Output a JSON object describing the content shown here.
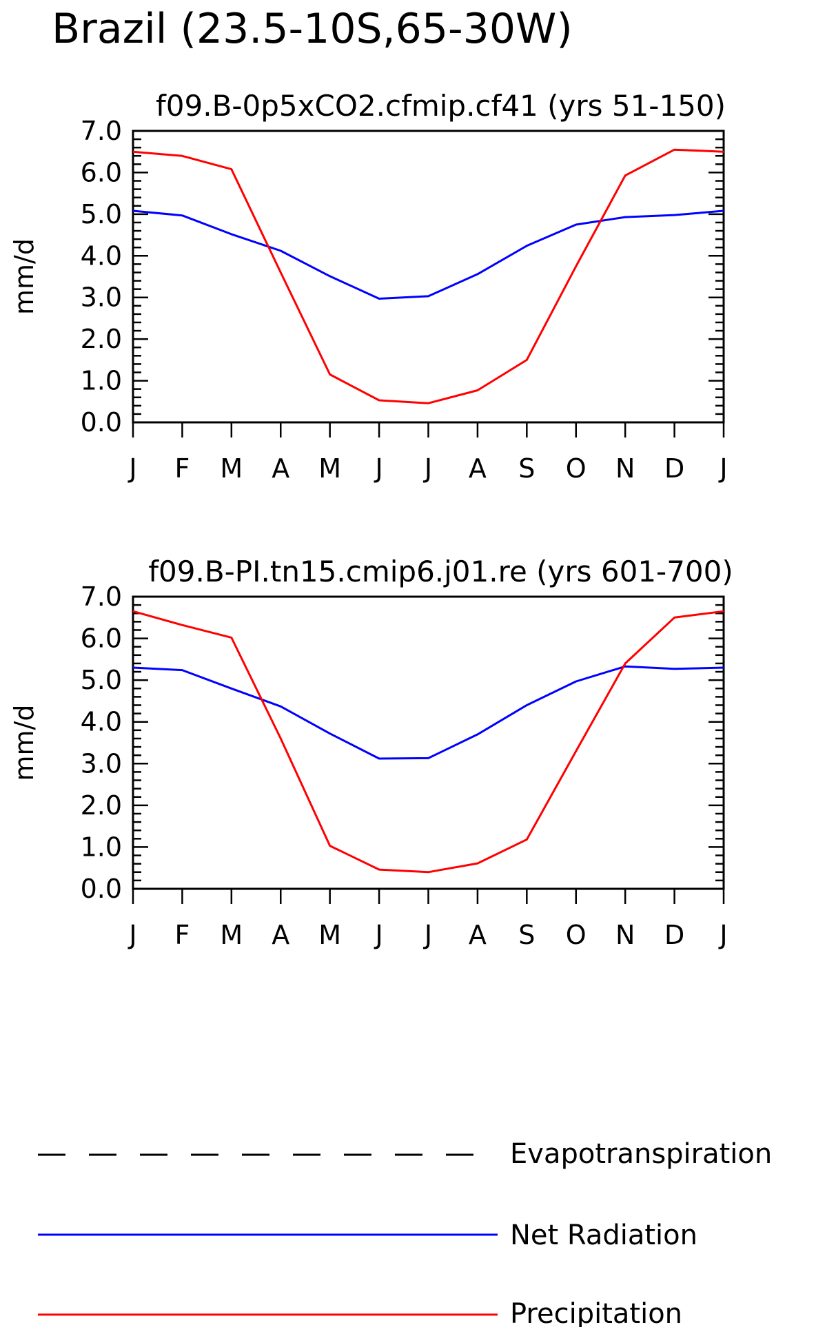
{
  "title": "Brazil (23.5-10S,65-30W)",
  "colors": {
    "evapotranspiration": "#000000",
    "net_radiation": "#0000ff",
    "precipitation": "#ff0000"
  },
  "chart_data": [
    {
      "type": "line",
      "title": "f09.B-0p5xCO2.cfmip.cf41 (yrs 51-150)",
      "ylabel": "mm/d",
      "xlabel": "",
      "categories": [
        "J",
        "F",
        "M",
        "A",
        "M",
        "J",
        "J",
        "A",
        "S",
        "O",
        "N",
        "D",
        "J"
      ],
      "ylim": [
        0,
        7
      ],
      "yticks": [
        "0.0",
        "1.0",
        "2.0",
        "3.0",
        "4.0",
        "5.0",
        "6.0",
        "7.0"
      ],
      "grid": false,
      "series": [
        {
          "name": "Net Radiation",
          "values": [
            5.08,
            4.97,
            4.52,
            4.12,
            3.51,
            2.97,
            3.03,
            3.56,
            4.24,
            4.75,
            4.93,
            4.98,
            5.08
          ]
        },
        {
          "name": "Precipitation",
          "values": [
            6.5,
            6.4,
            6.08,
            3.6,
            1.15,
            0.53,
            0.46,
            0.77,
            1.5,
            3.75,
            5.93,
            6.55,
            6.5
          ]
        }
      ]
    },
    {
      "type": "line",
      "title": "f09.B-PI.tn15.cmip6.j01.re (yrs 601-700)",
      "ylabel": "mm/d",
      "xlabel": "",
      "categories": [
        "J",
        "F",
        "M",
        "A",
        "M",
        "J",
        "J",
        "A",
        "S",
        "O",
        "N",
        "D",
        "J"
      ],
      "ylim": [
        0,
        7
      ],
      "yticks": [
        "0.0",
        "1.0",
        "2.0",
        "3.0",
        "4.0",
        "5.0",
        "6.0",
        "7.0"
      ],
      "grid": false,
      "series": [
        {
          "name": "Net Radiation",
          "values": [
            5.3,
            5.24,
            4.8,
            4.37,
            3.72,
            3.12,
            3.13,
            3.7,
            4.4,
            4.97,
            5.33,
            5.27,
            5.3
          ]
        },
        {
          "name": "Precipitation",
          "values": [
            6.65,
            6.32,
            6.02,
            3.6,
            1.03,
            0.46,
            0.4,
            0.61,
            1.18,
            3.3,
            5.4,
            6.5,
            6.65
          ]
        }
      ]
    }
  ],
  "legend": [
    {
      "label": "Evapotranspiration",
      "style": "dashed",
      "color": "#000000"
    },
    {
      "label": "Net Radiation",
      "style": "solid",
      "color": "#0000ff"
    },
    {
      "label": "Precipitation",
      "style": "solid",
      "color": "#ff0000"
    }
  ]
}
